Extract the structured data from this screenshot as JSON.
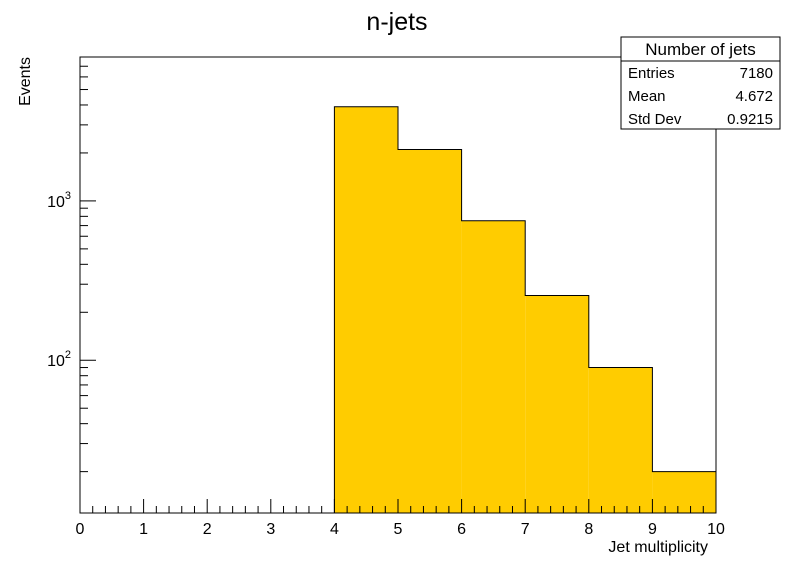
{
  "chart_data": {
    "type": "bar",
    "title": "n-jets",
    "xlabel": "Jet multiplicity",
    "ylabel": "Events",
    "x_bin_edges": [
      0,
      1,
      2,
      3,
      4,
      5,
      6,
      7,
      8,
      9,
      10
    ],
    "values": [
      0,
      0,
      0,
      0,
      3900,
      2100,
      750,
      255,
      90,
      20
    ],
    "xlim": [
      0,
      10
    ],
    "ylim": [
      11,
      8000
    ],
    "y_scale": "log",
    "x_ticks": [
      "0",
      "1",
      "2",
      "3",
      "4",
      "5",
      "6",
      "7",
      "8",
      "9",
      "10"
    ],
    "y_ticks": [
      {
        "value": 1000,
        "base": "10",
        "exp": "3"
      },
      {
        "value": 100,
        "base": "10",
        "exp": "2"
      }
    ],
    "fill_color": "#ffcc00",
    "edge_color": "#000000",
    "grid": false,
    "stats_box": {
      "title": "Number of jets",
      "position": "top-right",
      "rows": [
        {
          "label": "Entries",
          "value": "7180"
        },
        {
          "label": "Mean",
          "value": "4.672"
        },
        {
          "label": "Std Dev",
          "value": "0.9215"
        }
      ]
    }
  }
}
